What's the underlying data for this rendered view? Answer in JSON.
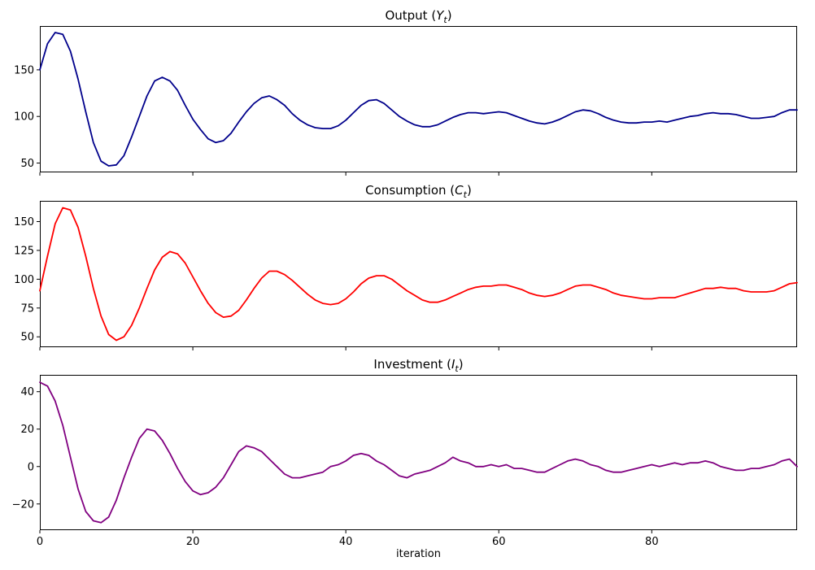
{
  "figure": {
    "background": "#ffffff",
    "xlabel": "iteration"
  },
  "chart_data": [
    {
      "id": "output",
      "type": "line",
      "title": "Output (Y_t)",
      "title_parts": {
        "prefix": "Output (",
        "var": "Y",
        "sub": "t",
        "suffix": ")"
      },
      "color": "#00008b",
      "legend": "none",
      "grid": false,
      "x_start": 0,
      "x_step": 1,
      "xlim": [
        0,
        99
      ],
      "ylim": [
        40,
        197
      ],
      "xticks": [
        0,
        20,
        40,
        60,
        80
      ],
      "yticks": [
        50,
        100,
        150
      ],
      "show_xtick_labels": false,
      "values": [
        150,
        178,
        190,
        188,
        170,
        140,
        105,
        72,
        52,
        47,
        48,
        58,
        78,
        100,
        122,
        138,
        142,
        138,
        128,
        112,
        97,
        86,
        76,
        72,
        74,
        82,
        94,
        105,
        114,
        120,
        122,
        118,
        112,
        103,
        96,
        91,
        88,
        87,
        87,
        90,
        96,
        104,
        112,
        117,
        118,
        114,
        107,
        100,
        95,
        91,
        89,
        89,
        91,
        95,
        99,
        102,
        104,
        104,
        103,
        104,
        105,
        104,
        101,
        98,
        95,
        93,
        92,
        94,
        97,
        101,
        105,
        107,
        106,
        103,
        99,
        96,
        94,
        93,
        93,
        94,
        94,
        95,
        94,
        96,
        98,
        100,
        101,
        103,
        104,
        103,
        103,
        102,
        100,
        98,
        98,
        99,
        100,
        104,
        107,
        107
      ]
    },
    {
      "id": "consumption",
      "type": "line",
      "title": "Consumption (C_t)",
      "title_parts": {
        "prefix": "Consumption (",
        "var": "C",
        "sub": "t",
        "suffix": ")"
      },
      "color": "#ff0000",
      "legend": "none",
      "grid": false,
      "x_start": 0,
      "x_step": 1,
      "xlim": [
        0,
        99
      ],
      "ylim": [
        41,
        168
      ],
      "xticks": [
        0,
        20,
        40,
        60,
        80
      ],
      "yticks": [
        50,
        75,
        100,
        125,
        150
      ],
      "show_xtick_labels": false,
      "values": [
        90,
        120,
        148,
        162,
        160,
        145,
        120,
        92,
        68,
        52,
        47,
        50,
        60,
        75,
        92,
        108,
        119,
        124,
        122,
        114,
        102,
        90,
        79,
        71,
        67,
        68,
        73,
        82,
        92,
        101,
        107,
        107,
        104,
        99,
        93,
        87,
        82,
        79,
        78,
        79,
        83,
        89,
        96,
        101,
        103,
        103,
        100,
        95,
        90,
        86,
        82,
        80,
        80,
        82,
        85,
        88,
        91,
        93,
        94,
        94,
        95,
        95,
        93,
        91,
        88,
        86,
        85,
        86,
        88,
        91,
        94,
        95,
        95,
        93,
        91,
        88,
        86,
        85,
        84,
        83,
        83,
        84,
        84,
        84,
        86,
        88,
        90,
        92,
        92,
        93,
        92,
        92,
        90,
        89,
        89,
        89,
        90,
        93,
        96,
        97
      ]
    },
    {
      "id": "investment",
      "type": "line",
      "title": "Investment (I_t)",
      "title_parts": {
        "prefix": "Investment (",
        "var": "I",
        "sub": "t",
        "suffix": ")"
      },
      "color": "#800080",
      "legend": "none",
      "grid": false,
      "x_start": 0,
      "x_step": 1,
      "xlim": [
        0,
        99
      ],
      "ylim": [
        -34,
        49
      ],
      "xticks": [
        0,
        20,
        40,
        60,
        80
      ],
      "yticks": [
        -20,
        0,
        20,
        40
      ],
      "show_xtick_labels": true,
      "xlabel": "iteration",
      "values": [
        45,
        43,
        35,
        22,
        5,
        -12,
        -24,
        -29,
        -30,
        -27,
        -18,
        -6,
        5,
        15,
        20,
        19,
        14,
        7,
        -1,
        -8,
        -13,
        -15,
        -14,
        -11,
        -6,
        1,
        8,
        11,
        10,
        8,
        4,
        0,
        -4,
        -6,
        -6,
        -5,
        -4,
        -3,
        0,
        1,
        3,
        6,
        7,
        6,
        3,
        1,
        -2,
        -5,
        -6,
        -4,
        -3,
        -2,
        0,
        2,
        5,
        3,
        2,
        0,
        0,
        1,
        0,
        1,
        -1,
        -1,
        -2,
        -3,
        -3,
        -1,
        1,
        3,
        4,
        3,
        1,
        0,
        -2,
        -3,
        -3,
        -2,
        -1,
        0,
        1,
        0,
        1,
        2,
        1,
        2,
        2,
        3,
        2,
        0,
        -1,
        -2,
        -2,
        -1,
        -1,
        0,
        1,
        3,
        4,
        0
      ]
    }
  ]
}
